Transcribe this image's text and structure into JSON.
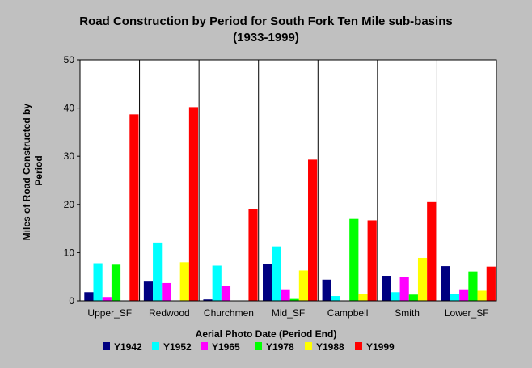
{
  "chart_data": {
    "type": "bar",
    "title": "Road Construction by Period for South Fork Ten Mile sub-basins",
    "subtitle": "(1933-1999)",
    "xlabel": "Aerial Photo Date (Period End)",
    "ylabel": "Miles of Road Constructed by Period",
    "ylabel_lines": [
      "Miles of Road Constructed by",
      "Period"
    ],
    "ylim": [
      0,
      50
    ],
    "yticks": [
      0,
      10,
      20,
      30,
      40,
      50
    ],
    "grid": false,
    "legend_position": "bottom",
    "categories": [
      "Upper_SF",
      "Redwood",
      "Churchmen",
      "Mid_SF",
      "Campbell",
      "Smith",
      "Lower_SF"
    ],
    "series": [
      {
        "name": "Y1942",
        "color": "#000080",
        "values": [
          1.8,
          4.0,
          0.3,
          7.6,
          4.4,
          5.2,
          7.2
        ]
      },
      {
        "name": "Y1952",
        "color": "#00ffff",
        "values": [
          7.8,
          12.1,
          7.3,
          11.3,
          1.0,
          1.8,
          1.5
        ]
      },
      {
        "name": "Y1965",
        "color": "#ff00ff",
        "values": [
          0.8,
          3.7,
          3.1,
          2.4,
          0.0,
          4.9,
          2.4
        ]
      },
      {
        "name": "Y1978",
        "color": "#00ff00",
        "values": [
          7.5,
          0.0,
          0.0,
          0.4,
          17.0,
          1.3,
          6.1
        ]
      },
      {
        "name": "Y1988",
        "color": "#ffff00",
        "values": [
          0.0,
          8.0,
          0.0,
          6.3,
          1.5,
          8.9,
          2.1
        ]
      },
      {
        "name": "Y1999",
        "color": "#ff0000",
        "values": [
          38.7,
          40.2,
          19.0,
          29.3,
          16.7,
          20.5,
          7.1
        ]
      }
    ]
  }
}
